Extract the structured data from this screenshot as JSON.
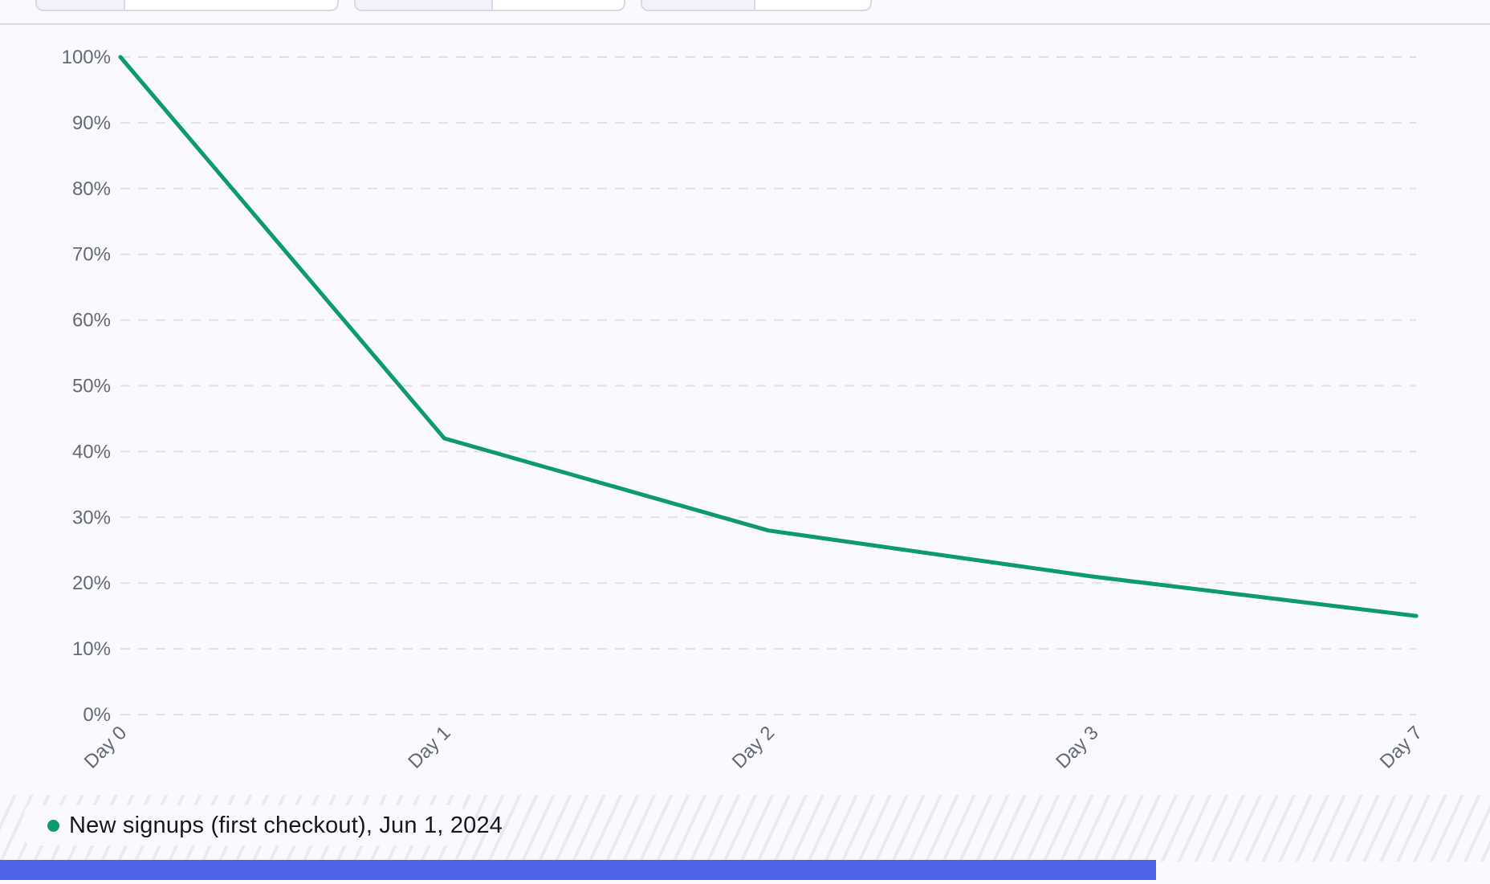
{
  "page": {
    "background": "#FAFAFE",
    "divider_color": "#DADCE5"
  },
  "toolbar": {
    "note": "three segmented filter controls cropped at top edge, no text visible"
  },
  "chart_data": {
    "type": "line",
    "title": "",
    "xlabel": "",
    "ylabel": "",
    "categories": [
      "Day 0",
      "Day 1",
      "Day 2",
      "Day 3",
      "Day 7"
    ],
    "series": [
      {
        "name": "New signups (first checkout), Jun 1, 2024",
        "values": [
          100,
          42,
          28,
          21,
          15
        ],
        "color": "#0D9A6D"
      }
    ],
    "yticks": [
      "0%",
      "10%",
      "20%",
      "30%",
      "40%",
      "50%",
      "60%",
      "70%",
      "80%",
      "90%",
      "100%"
    ],
    "ylim": [
      0,
      100
    ],
    "unit": "%",
    "grid": "dashed horizontal",
    "gridline_color": "#DEE0E8",
    "tick_label_color": "#646A75",
    "x_labels_rotation_deg": -45,
    "legend_position": "bottom-left"
  },
  "legend": {
    "dot_color": "#0D9A6D"
  },
  "colors": {
    "accent_green": "#0D9A6D",
    "hatch": "#E8EAF5",
    "bottom_bar_blue": "#4F63E8",
    "control_border": "#D8DAE3",
    "control_label_bg": "#F2F3FA"
  }
}
